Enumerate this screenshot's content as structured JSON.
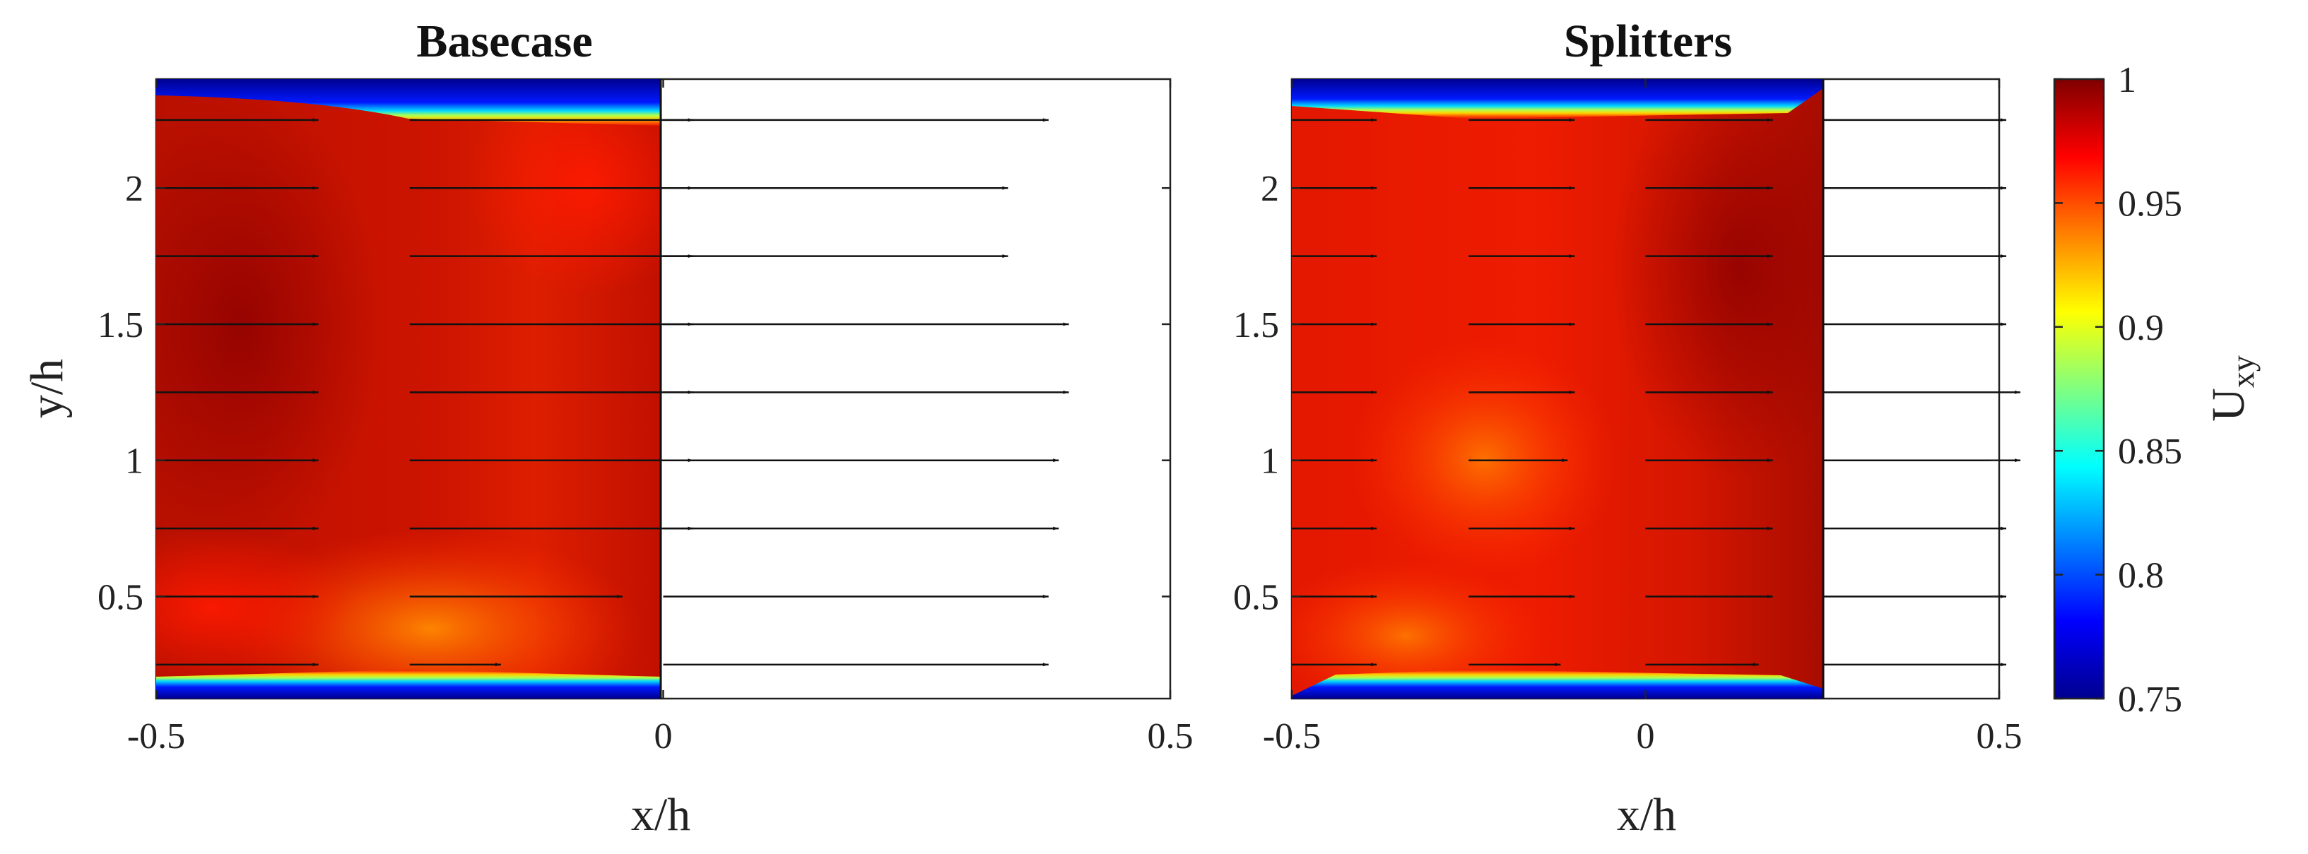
{
  "chart_data": [
    {
      "type": "heatmap",
      "title": "Basecase",
      "xlabel": "x/h",
      "ylabel": "y/h",
      "xlim": [
        -0.5,
        0.5
      ],
      "ylim": [
        0.125,
        2.4
      ],
      "x_ticks": [
        "-0.5",
        "0",
        "0.5"
      ],
      "y_ticks": [
        "0.5",
        "1",
        "1.5",
        "2"
      ],
      "field_extent": {
        "x": [
          -0.5,
          0
        ],
        "y": [
          0.125,
          2.4
        ]
      },
      "colorbar_label": "U_xy",
      "vector_columns": [
        {
          "x": -0.5,
          "y": [
            0.25,
            0.5,
            0.75,
            1.0,
            1.25,
            1.5,
            1.75,
            2.0,
            2.25
          ],
          "length": [
            0.16,
            0.16,
            0.16,
            0.16,
            0.16,
            0.16,
            0.16,
            0.16,
            0.16
          ]
        },
        {
          "x": -0.25,
          "y": [
            0.25,
            0.5,
            0.75,
            1.0,
            1.25,
            1.5,
            1.75,
            2.0,
            2.25
          ],
          "length": [
            0.09,
            0.21,
            0.28,
            0.28,
            0.28,
            0.28,
            0.28,
            0.28,
            0.28
          ]
        },
        {
          "x": 0.0,
          "y": [
            0.25,
            0.5,
            0.75,
            1.0,
            1.25,
            1.5,
            1.75,
            2.0,
            2.25
          ],
          "length": [
            0.38,
            0.38,
            0.39,
            0.39,
            0.4,
            0.4,
            0.34,
            0.34,
            0.38
          ]
        }
      ]
    },
    {
      "type": "heatmap",
      "title": "Splitters",
      "xlabel": "x/h",
      "ylabel": "",
      "xlim": [
        -0.5,
        0.5
      ],
      "ylim": [
        0.125,
        2.4
      ],
      "x_ticks": [
        "-0.5",
        "0",
        "0.5"
      ],
      "y_ticks": [
        "0.5",
        "1",
        "1.5",
        "2"
      ],
      "field_extent": {
        "x": [
          -0.5,
          0.25
        ],
        "y": [
          0.125,
          2.4
        ]
      },
      "colorbar_label": "U_xy",
      "vector_columns": [
        {
          "x": -0.5,
          "y": [
            0.25,
            0.5,
            0.75,
            1.0,
            1.25,
            1.5,
            1.75,
            2.0,
            2.25
          ],
          "length": [
            0.12,
            0.12,
            0.12,
            0.12,
            0.12,
            0.12,
            0.12,
            0.12,
            0.12
          ]
        },
        {
          "x": -0.25,
          "y": [
            0.25,
            0.5,
            0.75,
            1.0,
            1.25,
            1.5,
            1.75,
            2.0,
            2.25
          ],
          "length": [
            0.13,
            0.15,
            0.15,
            0.14,
            0.15,
            0.15,
            0.15,
            0.15,
            0.15
          ]
        },
        {
          "x": 0.0,
          "y": [
            0.25,
            0.5,
            0.75,
            1.0,
            1.25,
            1.5,
            1.75,
            2.0,
            2.25
          ],
          "length": [
            0.16,
            0.18,
            0.18,
            0.18,
            0.18,
            0.18,
            0.18,
            0.18,
            0.18
          ]
        },
        {
          "x": 0.25,
          "y": [
            0.25,
            0.5,
            0.75,
            1.0,
            1.25,
            1.5,
            1.75,
            2.0,
            2.25
          ],
          "length": [
            0.26,
            0.26,
            0.26,
            0.28,
            0.28,
            0.26,
            0.26,
            0.26,
            0.26
          ]
        }
      ]
    }
  ],
  "colorbar": {
    "label": "U",
    "label_subscript": "xy",
    "range": [
      0.75,
      1.0
    ],
    "ticks": [
      "0.75",
      "0.8",
      "0.85",
      "0.9",
      "0.95",
      "1"
    ],
    "colormap": [
      "#00008f",
      "#0000ff",
      "#00ffff",
      "#80ff80",
      "#ffff00",
      "#ff8000",
      "#ff0000",
      "#800000"
    ]
  }
}
